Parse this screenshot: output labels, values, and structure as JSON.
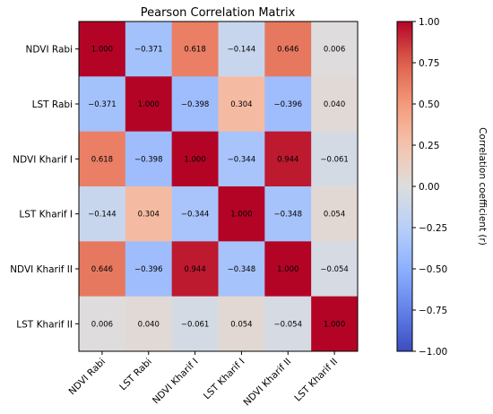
{
  "chart_data": {
    "type": "heatmap",
    "title": "Pearson Correlation Matrix",
    "row_labels": [
      "NDVI Rabi",
      "LST Rabi",
      "NDVI Kharif I",
      "LST Kharif I",
      "NDVI Kharif II",
      "LST Kharif II"
    ],
    "col_labels": [
      "NDVI Rabi",
      "LST Rabi",
      "NDVI Kharif I",
      "LST Kharif I",
      "NDVI Kharif II",
      "LST Kharif II"
    ],
    "values": [
      [
        1.0,
        -0.371,
        0.618,
        -0.144,
        0.646,
        0.006
      ],
      [
        -0.371,
        1.0,
        -0.398,
        0.304,
        -0.396,
        0.04
      ],
      [
        0.618,
        -0.398,
        1.0,
        -0.344,
        0.944,
        -0.061
      ],
      [
        -0.144,
        0.304,
        -0.344,
        1.0,
        -0.348,
        0.054
      ],
      [
        0.646,
        -0.396,
        0.944,
        -0.348,
        1.0,
        -0.054
      ],
      [
        0.006,
        0.04,
        -0.061,
        0.054,
        -0.054,
        1.0
      ]
    ],
    "value_labels": [
      [
        "1.000",
        "−0.371",
        "0.618",
        "−0.144",
        "0.646",
        "0.006"
      ],
      [
        "−0.371",
        "1.000",
        "−0.398",
        "0.304",
        "−0.396",
        "0.040"
      ],
      [
        "0.618",
        "−0.398",
        "1.000",
        "−0.344",
        "0.944",
        "−0.061"
      ],
      [
        "−0.144",
        "0.304",
        "−0.344",
        "1.000",
        "−0.348",
        "0.054"
      ],
      [
        "0.646",
        "−0.396",
        "0.944",
        "−0.348",
        "1.000",
        "−0.054"
      ],
      [
        "0.006",
        "0.040",
        "−0.061",
        "0.054",
        "−0.054",
        "1.000"
      ]
    ],
    "colormap": "coolwarm",
    "vmin": -1.0,
    "vmax": 1.0,
    "colorbar": {
      "label": "Correlation coefficient (r)",
      "ticks": [
        1.0,
        0.75,
        0.5,
        0.25,
        0.0,
        -0.25,
        -0.5,
        -0.75,
        -1.0
      ],
      "tick_labels": [
        "1.00",
        "0.75",
        "0.50",
        "0.25",
        "0.00",
        "−0.25",
        "−0.50",
        "−0.75",
        "−1.00"
      ]
    }
  }
}
